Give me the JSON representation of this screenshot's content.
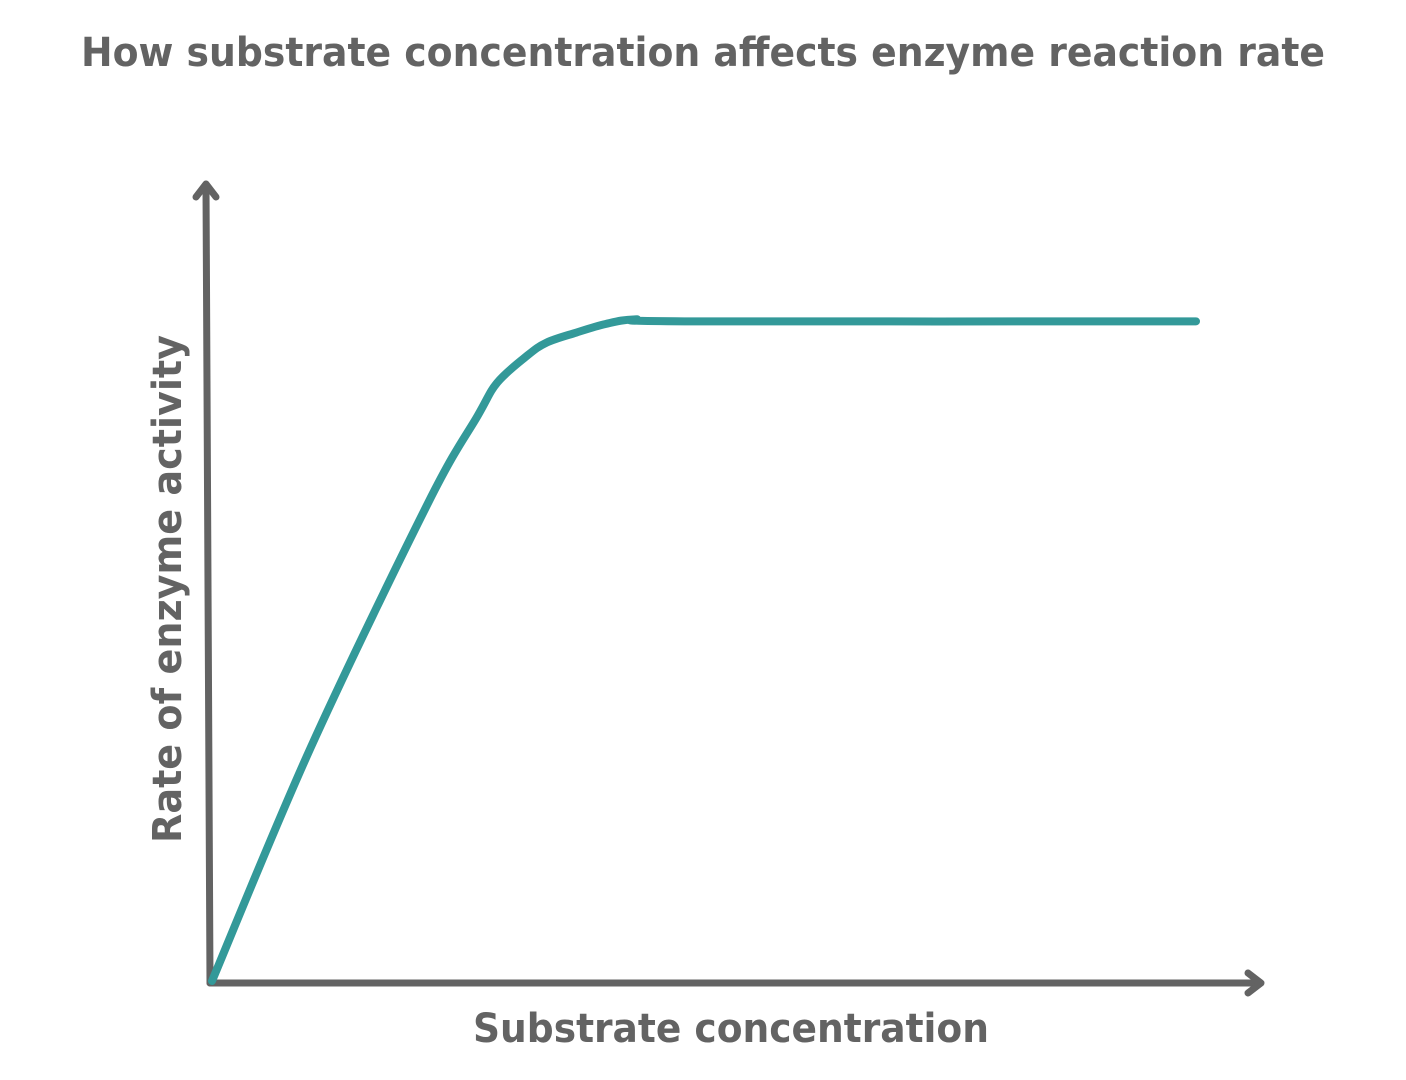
{
  "chart_data": {
    "type": "line",
    "title": "How substrate concentration affects enzyme reaction rate",
    "xlabel": "Substrate concentration",
    "ylabel": "Rate of enzyme activity",
    "xlim": [
      0,
      100
    ],
    "ylim": [
      0,
      100
    ],
    "grid": false,
    "ticks": false,
    "series": [
      {
        "color": "#339999",
        "x": [
          0,
          10,
          22,
          27,
          29,
          32,
          34,
          37,
          40,
          43,
          48,
          100
        ],
        "y": [
          0,
          35,
          72,
          85,
          90,
          94,
          96,
          97.5,
          98.8,
          99.5,
          99.2,
          99.2
        ]
      }
    ]
  },
  "colors": {
    "axis": "#636363",
    "text": "#636363",
    "series": "#339999",
    "background": "#ffffff"
  }
}
